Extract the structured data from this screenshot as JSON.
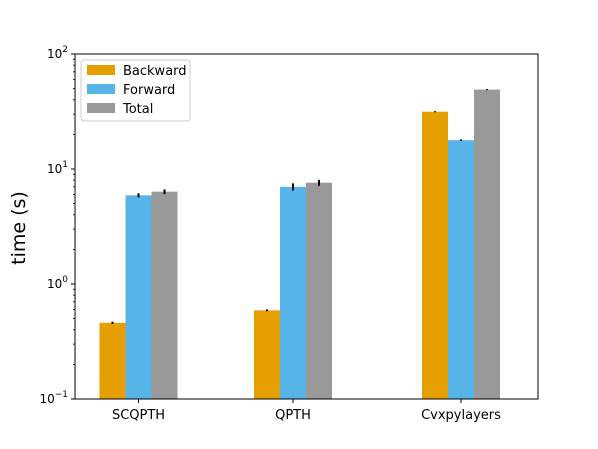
{
  "chart_data": {
    "type": "bar",
    "title": "",
    "xlabel": "",
    "ylabel": "time (s)",
    "yscale": "log",
    "ylim": [
      0.1,
      100
    ],
    "yticks": [
      {
        "value": 0.1,
        "base": "10",
        "exp": "−1"
      },
      {
        "value": 1,
        "base": "10",
        "exp": "0"
      },
      {
        "value": 10,
        "base": "10",
        "exp": "1"
      },
      {
        "value": 100,
        "base": "10",
        "exp": "2"
      }
    ],
    "categories": [
      "SCQPTH",
      "QPTH",
      "Cvxpylayers"
    ],
    "series": [
      {
        "name": "Backward",
        "color": "#E69F00",
        "values": [
          0.46,
          0.59,
          31.5
        ],
        "errors": [
          0.01,
          0.01,
          0.3
        ]
      },
      {
        "name": "Forward",
        "color": "#56B4E9",
        "values": [
          5.9,
          7.0,
          17.8
        ],
        "errors": [
          0.25,
          0.5,
          0.25
        ]
      },
      {
        "name": "Total",
        "color": "#999999",
        "values": [
          6.35,
          7.6,
          49.0
        ],
        "errors": [
          0.3,
          0.45,
          0.5
        ]
      }
    ],
    "legend": "top-left",
    "grid": false
  }
}
